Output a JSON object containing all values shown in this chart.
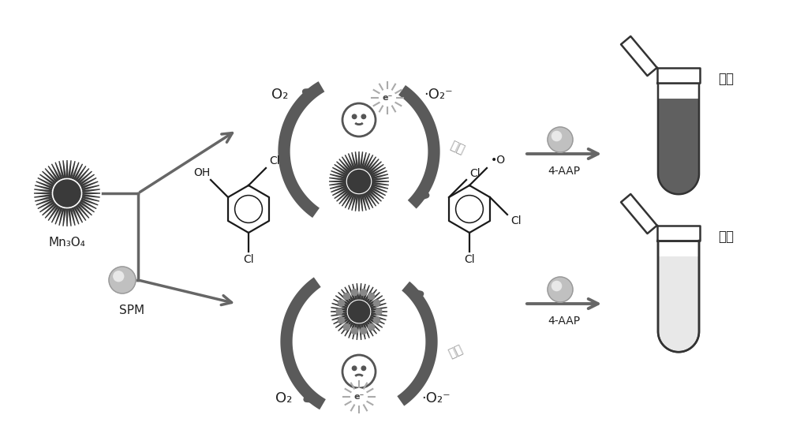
{
  "bg_color": "#ffffff",
  "mn3o4_label": "Mn₃O₄",
  "spm_label": "SPM",
  "o2_label": "O₂",
  "superoxide_label": "·O₂⁻",
  "more_label": "更多",
  "less_label": "更少",
  "aap_label": "4-AAP",
  "positive_label": "阳性",
  "negative_label": "阴性",
  "arrow_gray": "#666666",
  "thick_arrow_gray": "#5a5a5a",
  "text_dark": "#222222",
  "chinese_gray": "#999999",
  "tube_dark": "#606060",
  "tube_white": "#f0f0f0",
  "nano_color": "#3a3a3a",
  "spm_light": "#c0c0c0",
  "spm_highlight": "#e8e8e8"
}
